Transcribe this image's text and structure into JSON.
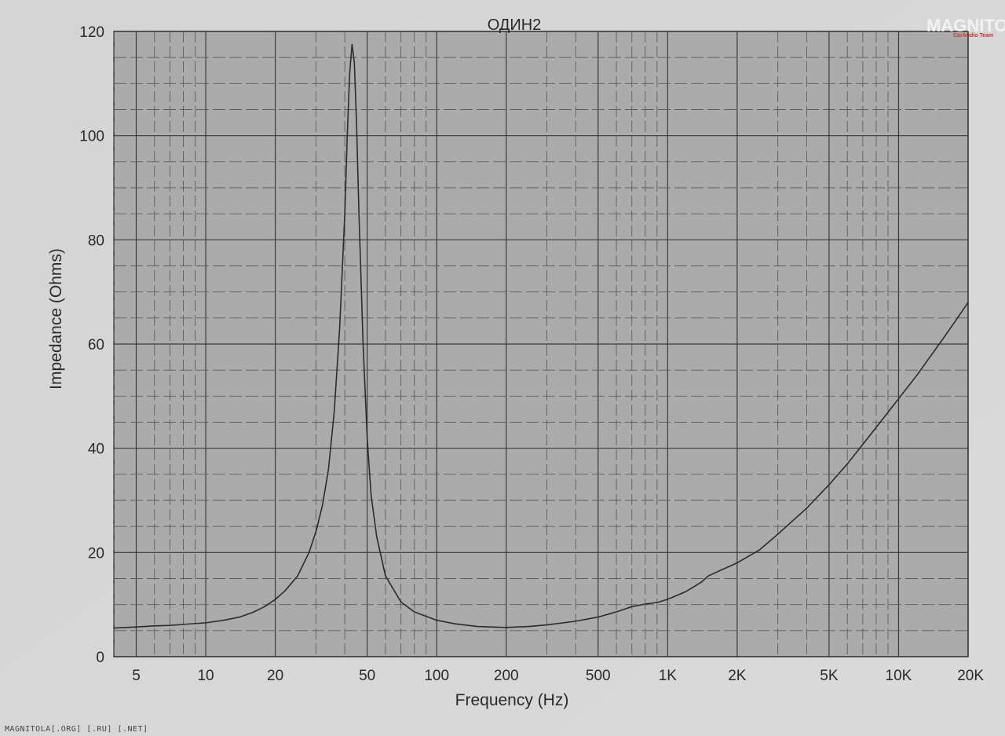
{
  "chart_data": {
    "type": "line",
    "title": "ОДИН2",
    "xlabel": "Frequency (Hz)",
    "ylabel": "Impedance (Ohms)",
    "xscale": "log",
    "xlim": [
      4,
      20000
    ],
    "ylim": [
      0,
      120
    ],
    "grid": true,
    "x_ticks": [
      {
        "value": 5,
        "label": "5"
      },
      {
        "value": 10,
        "label": "10"
      },
      {
        "value": 20,
        "label": "20"
      },
      {
        "value": 50,
        "label": "50"
      },
      {
        "value": 100,
        "label": "100"
      },
      {
        "value": 200,
        "label": "200"
      },
      {
        "value": 500,
        "label": "500"
      },
      {
        "value": 1000,
        "label": "1K"
      },
      {
        "value": 2000,
        "label": "2K"
      },
      {
        "value": 5000,
        "label": "5K"
      },
      {
        "value": 10000,
        "label": "10K"
      },
      {
        "value": 20000,
        "label": "20K"
      }
    ],
    "y_ticks": [
      {
        "value": 0,
        "label": "0"
      },
      {
        "value": 20,
        "label": "20"
      },
      {
        "value": 40,
        "label": "40"
      },
      {
        "value": 60,
        "label": "60"
      },
      {
        "value": 80,
        "label": "80"
      },
      {
        "value": 100,
        "label": "100"
      },
      {
        "value": 120,
        "label": "120"
      }
    ],
    "series": [
      {
        "points": [
          [
            4,
            5.5
          ],
          [
            5,
            5.7
          ],
          [
            6,
            5.9
          ],
          [
            7,
            6.0
          ],
          [
            8,
            6.2
          ],
          [
            10,
            6.5
          ],
          [
            12,
            7.0
          ],
          [
            14,
            7.6
          ],
          [
            16,
            8.5
          ],
          [
            18,
            9.6
          ],
          [
            20,
            11.0
          ],
          [
            22,
            12.6
          ],
          [
            25,
            15.5
          ],
          [
            28,
            20.0
          ],
          [
            30,
            24.0
          ],
          [
            32,
            29.0
          ],
          [
            34,
            36.0
          ],
          [
            36,
            47.0
          ],
          [
            38,
            63.0
          ],
          [
            40,
            85.0
          ],
          [
            41,
            100.0
          ],
          [
            42,
            112.0
          ],
          [
            43,
            117.5
          ],
          [
            44,
            114.0
          ],
          [
            45,
            102.0
          ],
          [
            46,
            86.0
          ],
          [
            48,
            60.0
          ],
          [
            50,
            42.0
          ],
          [
            52,
            31.0
          ],
          [
            55,
            23.0
          ],
          [
            60,
            15.5
          ],
          [
            70,
            10.5
          ],
          [
            80,
            8.6
          ],
          [
            100,
            7.0
          ],
          [
            120,
            6.3
          ],
          [
            150,
            5.8
          ],
          [
            200,
            5.6
          ],
          [
            250,
            5.8
          ],
          [
            300,
            6.1
          ],
          [
            400,
            6.8
          ],
          [
            500,
            7.6
          ],
          [
            600,
            8.6
          ],
          [
            700,
            9.6
          ],
          [
            800,
            10.1
          ],
          [
            900,
            10.4
          ],
          [
            1000,
            11.0
          ],
          [
            1200,
            12.5
          ],
          [
            1400,
            14.3
          ],
          [
            1500,
            15.5
          ],
          [
            1700,
            16.6
          ],
          [
            2000,
            18.0
          ],
          [
            2500,
            20.5
          ],
          [
            3000,
            23.5
          ],
          [
            4000,
            28.5
          ],
          [
            5000,
            33.0
          ],
          [
            6000,
            37.0
          ],
          [
            8000,
            44.0
          ],
          [
            10000,
            49.5
          ],
          [
            12000,
            54.0
          ],
          [
            15000,
            60.0
          ],
          [
            18000,
            65.0
          ],
          [
            20000,
            68.0
          ]
        ]
      }
    ]
  },
  "watermark": {
    "logo": "MAGNITOLA",
    "logo_sub": "CarAudio Team",
    "footer": "MAGNITOLA[.ORG] [.RU] [.NET]"
  },
  "colors": {
    "plot_background": "#ababab",
    "page_background": "#d6d6d6",
    "line": "#2b2b2b",
    "grid_major": "#3a3a3a",
    "grid_minor": "#5c5c5c"
  }
}
